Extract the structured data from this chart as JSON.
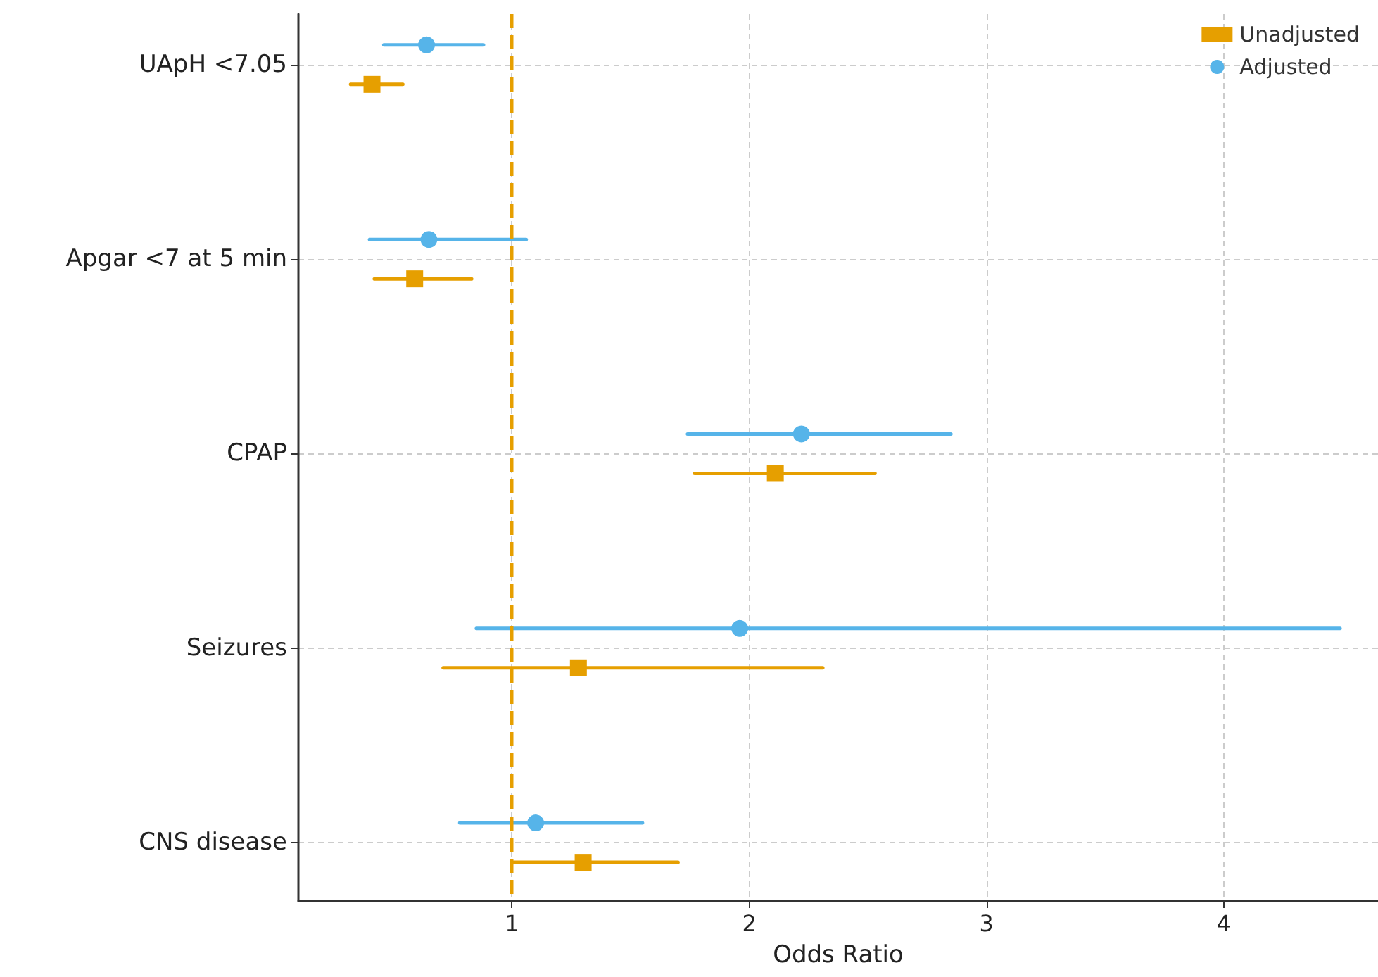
{
  "chart_data": {
    "type": "scatter",
    "orientation": "horizontal",
    "xlabel": "Odds Ratio",
    "categories": [
      "UApH <7.05",
      "Apgar <7 at 5 min",
      "CPAP",
      "Seizures",
      "CNS disease"
    ],
    "series": [
      {
        "name": "Unadjusted",
        "color": "#e69f00",
        "marker": "square",
        "values": [
          0.41,
          0.59,
          2.11,
          1.28,
          1.3
        ],
        "errors": [
          [
            0.32,
            0.54
          ],
          [
            0.42,
            0.83
          ],
          [
            1.77,
            2.53
          ],
          [
            0.71,
            2.31
          ],
          [
            1.0,
            1.7
          ]
        ]
      },
      {
        "name": "Adjusted",
        "color": "#56b4e9",
        "marker": "circle",
        "values": [
          0.64,
          0.65,
          2.22,
          1.96,
          1.1
        ],
        "errors": [
          [
            0.46,
            0.88
          ],
          [
            0.4,
            1.06
          ],
          [
            1.74,
            2.85
          ],
          [
            0.85,
            4.49
          ],
          [
            0.78,
            1.55
          ]
        ]
      }
    ],
    "xlim": [
      0.1,
      4.65
    ],
    "xticks": [
      1,
      2,
      3,
      4
    ],
    "grid": true,
    "legend": "top right",
    "ref_lines": [
      {
        "axis": "x",
        "value": 1,
        "color": "#e69f00",
        "line_style": "dashed"
      }
    ]
  }
}
